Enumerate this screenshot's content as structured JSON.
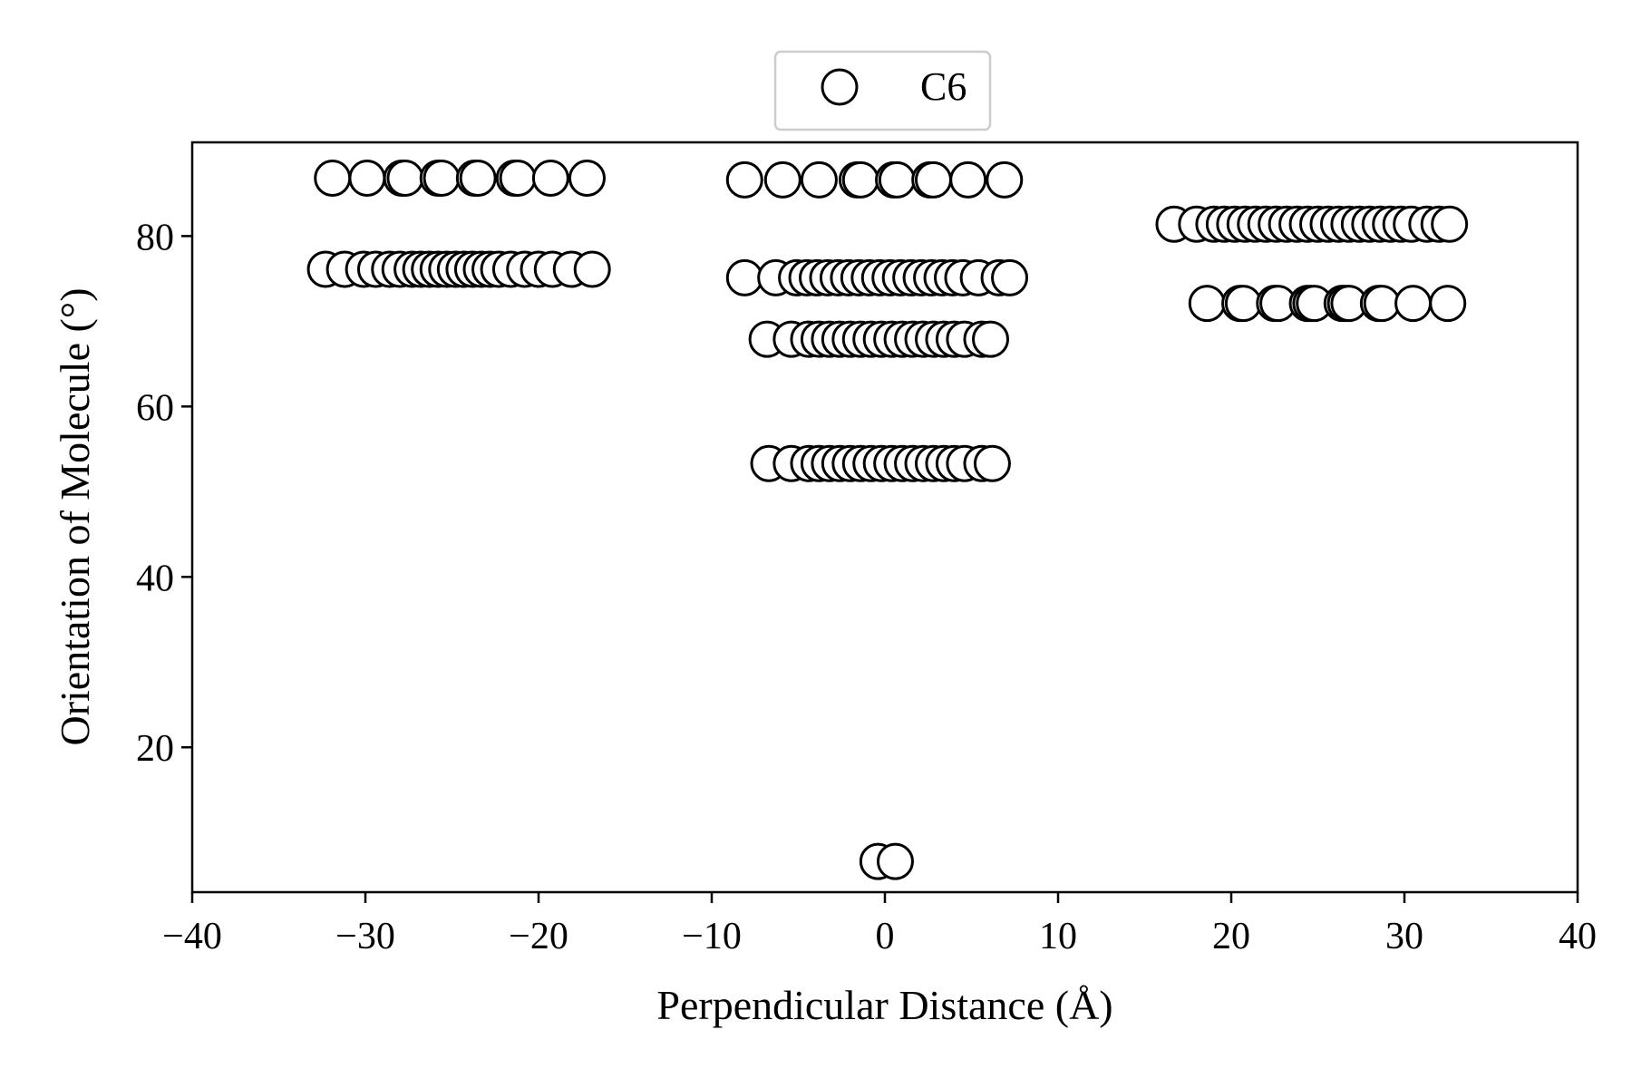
{
  "chart_data": {
    "type": "scatter",
    "title": "",
    "xlabel": "Perpendicular Distance (Å)",
    "ylabel": "Orientation of Molecule (°)",
    "xlim": [
      -40,
      40
    ],
    "ylim": [
      3,
      91
    ],
    "xticks": [
      -40,
      -30,
      -20,
      -10,
      0,
      10,
      20,
      30,
      40
    ],
    "xtick_labels": [
      "−40",
      "−30",
      "−20",
      "−10",
      "0",
      "10",
      "20",
      "30",
      "40"
    ],
    "yticks": [
      20,
      40,
      60,
      80
    ],
    "ytick_labels": [
      "20",
      "40",
      "60",
      "80"
    ],
    "grid": false,
    "legend_position": "top-center, outside plot",
    "marker": "open circle",
    "marker_fill": "#ffffff",
    "marker_edge": "#000000",
    "series": [
      {
        "name": "C6",
        "points": [
          [
            -31.9,
            86.8
          ],
          [
            -29.9,
            86.8
          ],
          [
            -27.9,
            86.8
          ],
          [
            -27.7,
            86.8
          ],
          [
            -25.8,
            86.8
          ],
          [
            -25.6,
            86.8
          ],
          [
            -23.7,
            86.8
          ],
          [
            -23.5,
            86.8
          ],
          [
            -21.4,
            86.8
          ],
          [
            -21.2,
            86.8
          ],
          [
            -19.3,
            86.8
          ],
          [
            -17.2,
            86.8
          ],
          [
            -32.3,
            76.1
          ],
          [
            -31.2,
            76.1
          ],
          [
            -30.1,
            76.1
          ],
          [
            -29.4,
            76.1
          ],
          [
            -28.6,
            76.1
          ],
          [
            -28.0,
            76.1
          ],
          [
            -27.3,
            76.1
          ],
          [
            -26.8,
            76.1
          ],
          [
            -26.3,
            76.1
          ],
          [
            -25.8,
            76.1
          ],
          [
            -25.3,
            76.1
          ],
          [
            -24.8,
            76.1
          ],
          [
            -24.3,
            76.1
          ],
          [
            -23.8,
            76.1
          ],
          [
            -23.3,
            76.1
          ],
          [
            -22.8,
            76.1
          ],
          [
            -22.3,
            76.1
          ],
          [
            -21.6,
            76.1
          ],
          [
            -20.8,
            76.1
          ],
          [
            -20.0,
            76.1
          ],
          [
            -19.2,
            76.1
          ],
          [
            -18.1,
            76.1
          ],
          [
            -16.9,
            76.1
          ],
          [
            -8.1,
            86.6
          ],
          [
            -5.9,
            86.6
          ],
          [
            -3.8,
            86.6
          ],
          [
            -1.6,
            86.6
          ],
          [
            -1.4,
            86.6
          ],
          [
            0.5,
            86.6
          ],
          [
            0.7,
            86.6
          ],
          [
            2.6,
            86.6
          ],
          [
            2.8,
            86.6
          ],
          [
            4.8,
            86.6
          ],
          [
            6.9,
            86.6
          ],
          [
            -8.1,
            75.1
          ],
          [
            -6.3,
            75.1
          ],
          [
            -5.1,
            75.1
          ],
          [
            -4.5,
            75.1
          ],
          [
            -3.9,
            75.1
          ],
          [
            -3.3,
            75.1
          ],
          [
            -2.7,
            75.1
          ],
          [
            -2.1,
            75.1
          ],
          [
            -1.5,
            75.1
          ],
          [
            -0.9,
            75.1
          ],
          [
            -0.3,
            75.1
          ],
          [
            0.3,
            75.1
          ],
          [
            0.9,
            75.1
          ],
          [
            1.5,
            75.1
          ],
          [
            2.1,
            75.1
          ],
          [
            2.7,
            75.1
          ],
          [
            3.3,
            75.1
          ],
          [
            3.9,
            75.1
          ],
          [
            4.5,
            75.1
          ],
          [
            5.4,
            75.1
          ],
          [
            6.6,
            75.1
          ],
          [
            7.2,
            75.1
          ],
          [
            -6.8,
            67.9
          ],
          [
            -5.4,
            67.9
          ],
          [
            -4.4,
            67.9
          ],
          [
            -3.8,
            67.9
          ],
          [
            -3.2,
            67.9
          ],
          [
            -2.6,
            67.9
          ],
          [
            -2.0,
            67.9
          ],
          [
            -1.4,
            67.9
          ],
          [
            -0.8,
            67.9
          ],
          [
            -0.2,
            67.9
          ],
          [
            0.4,
            67.9
          ],
          [
            1.0,
            67.9
          ],
          [
            1.6,
            67.9
          ],
          [
            2.2,
            67.9
          ],
          [
            2.8,
            67.9
          ],
          [
            3.4,
            67.9
          ],
          [
            4.0,
            67.9
          ],
          [
            4.6,
            67.9
          ],
          [
            5.6,
            67.9
          ],
          [
            6.1,
            67.9
          ],
          [
            -6.7,
            53.3
          ],
          [
            -5.4,
            53.3
          ],
          [
            -4.4,
            53.3
          ],
          [
            -3.8,
            53.3
          ],
          [
            -3.2,
            53.3
          ],
          [
            -2.6,
            53.3
          ],
          [
            -2.0,
            53.3
          ],
          [
            -1.4,
            53.3
          ],
          [
            -0.8,
            53.3
          ],
          [
            -0.2,
            53.3
          ],
          [
            0.4,
            53.3
          ],
          [
            1.0,
            53.3
          ],
          [
            1.6,
            53.3
          ],
          [
            2.2,
            53.3
          ],
          [
            2.8,
            53.3
          ],
          [
            3.4,
            53.3
          ],
          [
            4.0,
            53.3
          ],
          [
            4.6,
            53.3
          ],
          [
            5.6,
            53.3
          ],
          [
            6.2,
            53.3
          ],
          [
            -0.4,
            6.6
          ],
          [
            0.6,
            6.6
          ],
          [
            16.7,
            81.4
          ],
          [
            18.0,
            81.4
          ],
          [
            19.0,
            81.4
          ],
          [
            19.6,
            81.4
          ],
          [
            20.2,
            81.4
          ],
          [
            20.8,
            81.4
          ],
          [
            21.4,
            81.4
          ],
          [
            22.0,
            81.4
          ],
          [
            22.6,
            81.4
          ],
          [
            23.2,
            81.4
          ],
          [
            23.8,
            81.4
          ],
          [
            24.4,
            81.4
          ],
          [
            25.0,
            81.4
          ],
          [
            25.6,
            81.4
          ],
          [
            26.2,
            81.4
          ],
          [
            26.8,
            81.4
          ],
          [
            27.4,
            81.4
          ],
          [
            28.0,
            81.4
          ],
          [
            28.6,
            81.4
          ],
          [
            29.2,
            81.4
          ],
          [
            29.8,
            81.4
          ],
          [
            30.4,
            81.4
          ],
          [
            31.3,
            81.4
          ],
          [
            32.0,
            81.4
          ],
          [
            32.6,
            81.4
          ],
          [
            18.6,
            72.1
          ],
          [
            20.5,
            72.1
          ],
          [
            20.7,
            72.1
          ],
          [
            22.5,
            72.1
          ],
          [
            22.7,
            72.1
          ],
          [
            24.4,
            72.1
          ],
          [
            24.6,
            72.1
          ],
          [
            24.8,
            72.1
          ],
          [
            26.4,
            72.1
          ],
          [
            26.6,
            72.1
          ],
          [
            26.8,
            72.1
          ],
          [
            28.5,
            72.1
          ],
          [
            28.7,
            72.1
          ],
          [
            30.5,
            72.1
          ],
          [
            32.5,
            72.1
          ]
        ]
      }
    ]
  }
}
